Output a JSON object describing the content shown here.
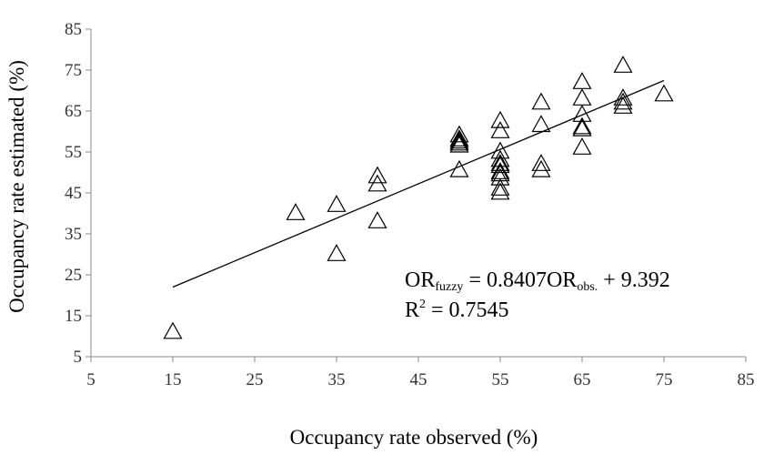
{
  "chart_data": {
    "type": "scatter",
    "xlabel": "Occupancy rate observed (%)",
    "ylabel": "Occupancy rate estimated (%)",
    "xlim": [
      5,
      85
    ],
    "ylim": [
      5,
      85
    ],
    "xticks": [
      5,
      15,
      25,
      35,
      45,
      55,
      65,
      75,
      85
    ],
    "yticks": [
      5,
      15,
      25,
      35,
      45,
      55,
      65,
      75,
      85
    ],
    "grid": false,
    "marker": "open-triangle",
    "x": [
      15,
      30,
      35,
      35,
      40,
      40,
      40,
      50,
      50,
      50,
      50,
      50,
      50,
      55,
      55,
      55,
      55,
      55,
      55,
      55,
      55,
      55,
      55,
      55,
      60,
      60,
      60,
      60,
      65,
      65,
      65,
      65,
      65,
      65,
      70,
      70,
      70,
      70,
      75
    ],
    "y": [
      11,
      40,
      42,
      30,
      49,
      47,
      38,
      59,
      58,
      57.5,
      57,
      56.5,
      50.5,
      62.5,
      60,
      55,
      53,
      51.5,
      50,
      49.5,
      48.5,
      46,
      45,
      52,
      67,
      61.5,
      52,
      50.5,
      72,
      68,
      64,
      61,
      60.5,
      56,
      76,
      68,
      67,
      66,
      69
    ],
    "trendline": {
      "slope": 0.8407,
      "intercept": 9.392,
      "x_range": [
        15,
        75
      ]
    },
    "annotation": {
      "eq_lhs_base": "OR",
      "eq_lhs_sub": "fuzzy",
      "eq_middle": " = 0.8407OR",
      "eq_rhs_sub": "obs.",
      "eq_tail": " + 9.392",
      "r2_base": "R",
      "r2_sup": "2",
      "r2_tail": " = 0.7545"
    }
  }
}
